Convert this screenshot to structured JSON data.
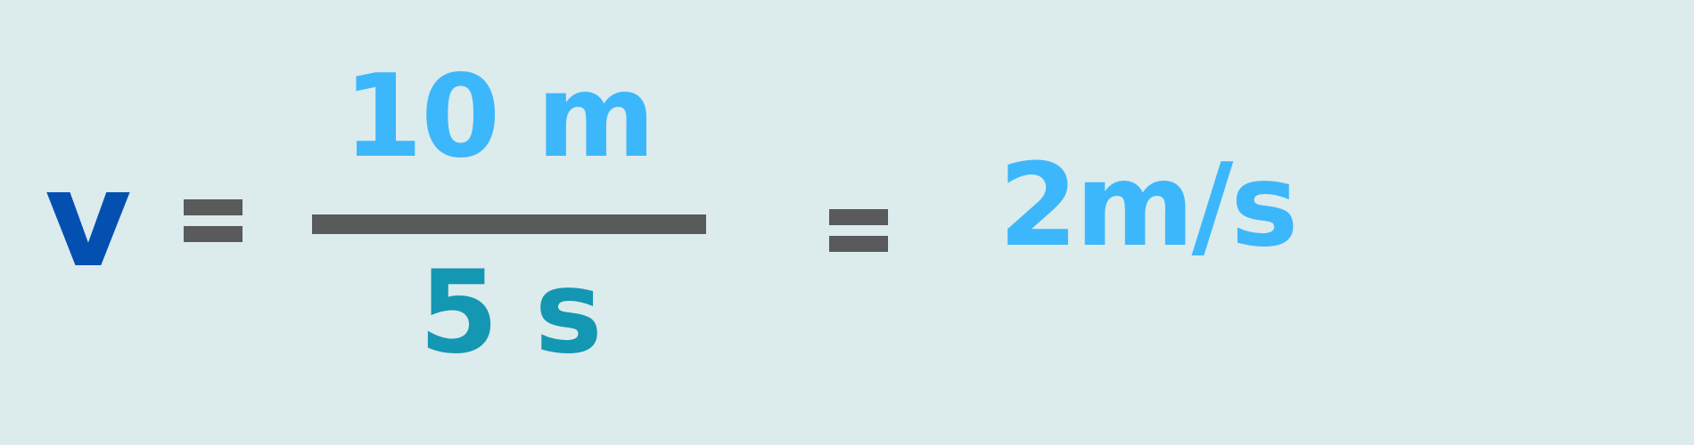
{
  "equation": {
    "variable": "v",
    "equals": "=",
    "numerator": "10 m",
    "denominator": "5 s",
    "result": "2m/s"
  },
  "colors": {
    "background": "#DCEBEC",
    "variable": "#0350B1",
    "numerator": "#3DB7FB",
    "denominator": "#1497B2",
    "result": "#3DB7FB",
    "operator": "#585A5B"
  }
}
